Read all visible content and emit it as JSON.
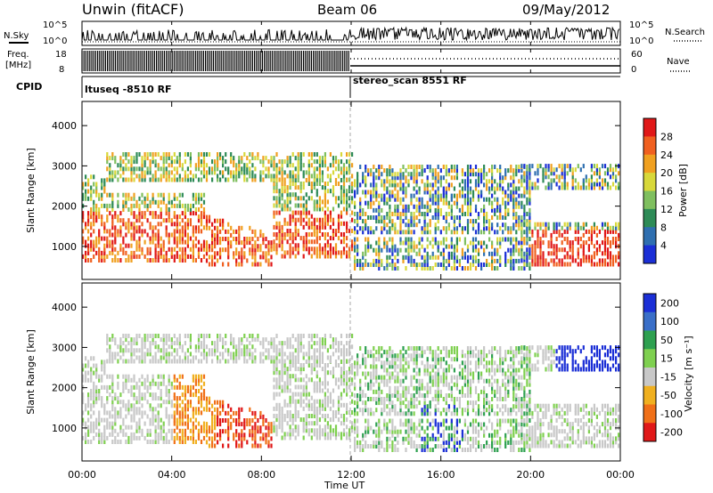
{
  "header": {
    "station": "Unwin (fitACF)",
    "beam": "Beam 06",
    "date": "09/May/2012"
  },
  "top_panels": {
    "nsky_label": "N.Sky",
    "nsky_tick_high": "10^5",
    "nsky_tick_low": "10^0",
    "nsearch_label": "N.Search",
    "nsearch_tick_high": "10^5",
    "nsearch_tick_low": "10^0",
    "freq_label_line1": "Freq.",
    "freq_label_line2": "[MHz]",
    "freq_ticks": [
      "18",
      "8"
    ],
    "nave_label": "Nave",
    "nave_ticks": [
      "60",
      "0"
    ],
    "cpid_label": "CPID",
    "cpid_segments": [
      {
        "label": "ltuseq -8510 RF",
        "start_hour": 0,
        "end_hour": 12
      },
      {
        "label": "stereo_scan 8551 RF",
        "start_hour": 12,
        "end_hour": 24
      }
    ]
  },
  "x_axis": {
    "label": "Time UT",
    "ticks": [
      "00:00",
      "04:00",
      "08:00",
      "12:00",
      "16:00",
      "20:00",
      "00:00"
    ]
  },
  "chart_data": [
    {
      "type": "heatmap",
      "name": "power",
      "xlabel": "Time UT",
      "ylabel": "Slant Range [km]",
      "xlim": [
        0,
        24
      ],
      "ylim": [
        180,
        4600
      ],
      "yticks": [
        "1000",
        "2000",
        "3000",
        "4000"
      ],
      "colorbar": {
        "label": "Power [dB]",
        "ticks": [
          "4",
          "8",
          "12",
          "16",
          "20",
          "24",
          "28"
        ],
        "colors": [
          "#1b2fd6",
          "#2f6fb0",
          "#2e8b57",
          "#7fbf5f",
          "#d8d83a",
          "#f0a020",
          "#f06020",
          "#e01818"
        ]
      }
    },
    {
      "type": "heatmap",
      "name": "velocity",
      "xlabel": "Time UT",
      "ylabel": "Slant Range [km]",
      "xlim": [
        0,
        24
      ],
      "ylim": [
        180,
        4600
      ],
      "yticks": [
        "1000",
        "2000",
        "3000",
        "4000"
      ],
      "colorbar": {
        "label": "Velocity [m s⁻¹]",
        "ticks": [
          "200",
          "100",
          "50",
          "15",
          "-15",
          "-50",
          "-100",
          "-200"
        ],
        "colors": [
          "#1b2fd6",
          "#3a6fc8",
          "#2ea050",
          "#7fd050",
          "#c8c8c8",
          "#f0b020",
          "#f07018",
          "#e01818"
        ]
      }
    }
  ]
}
